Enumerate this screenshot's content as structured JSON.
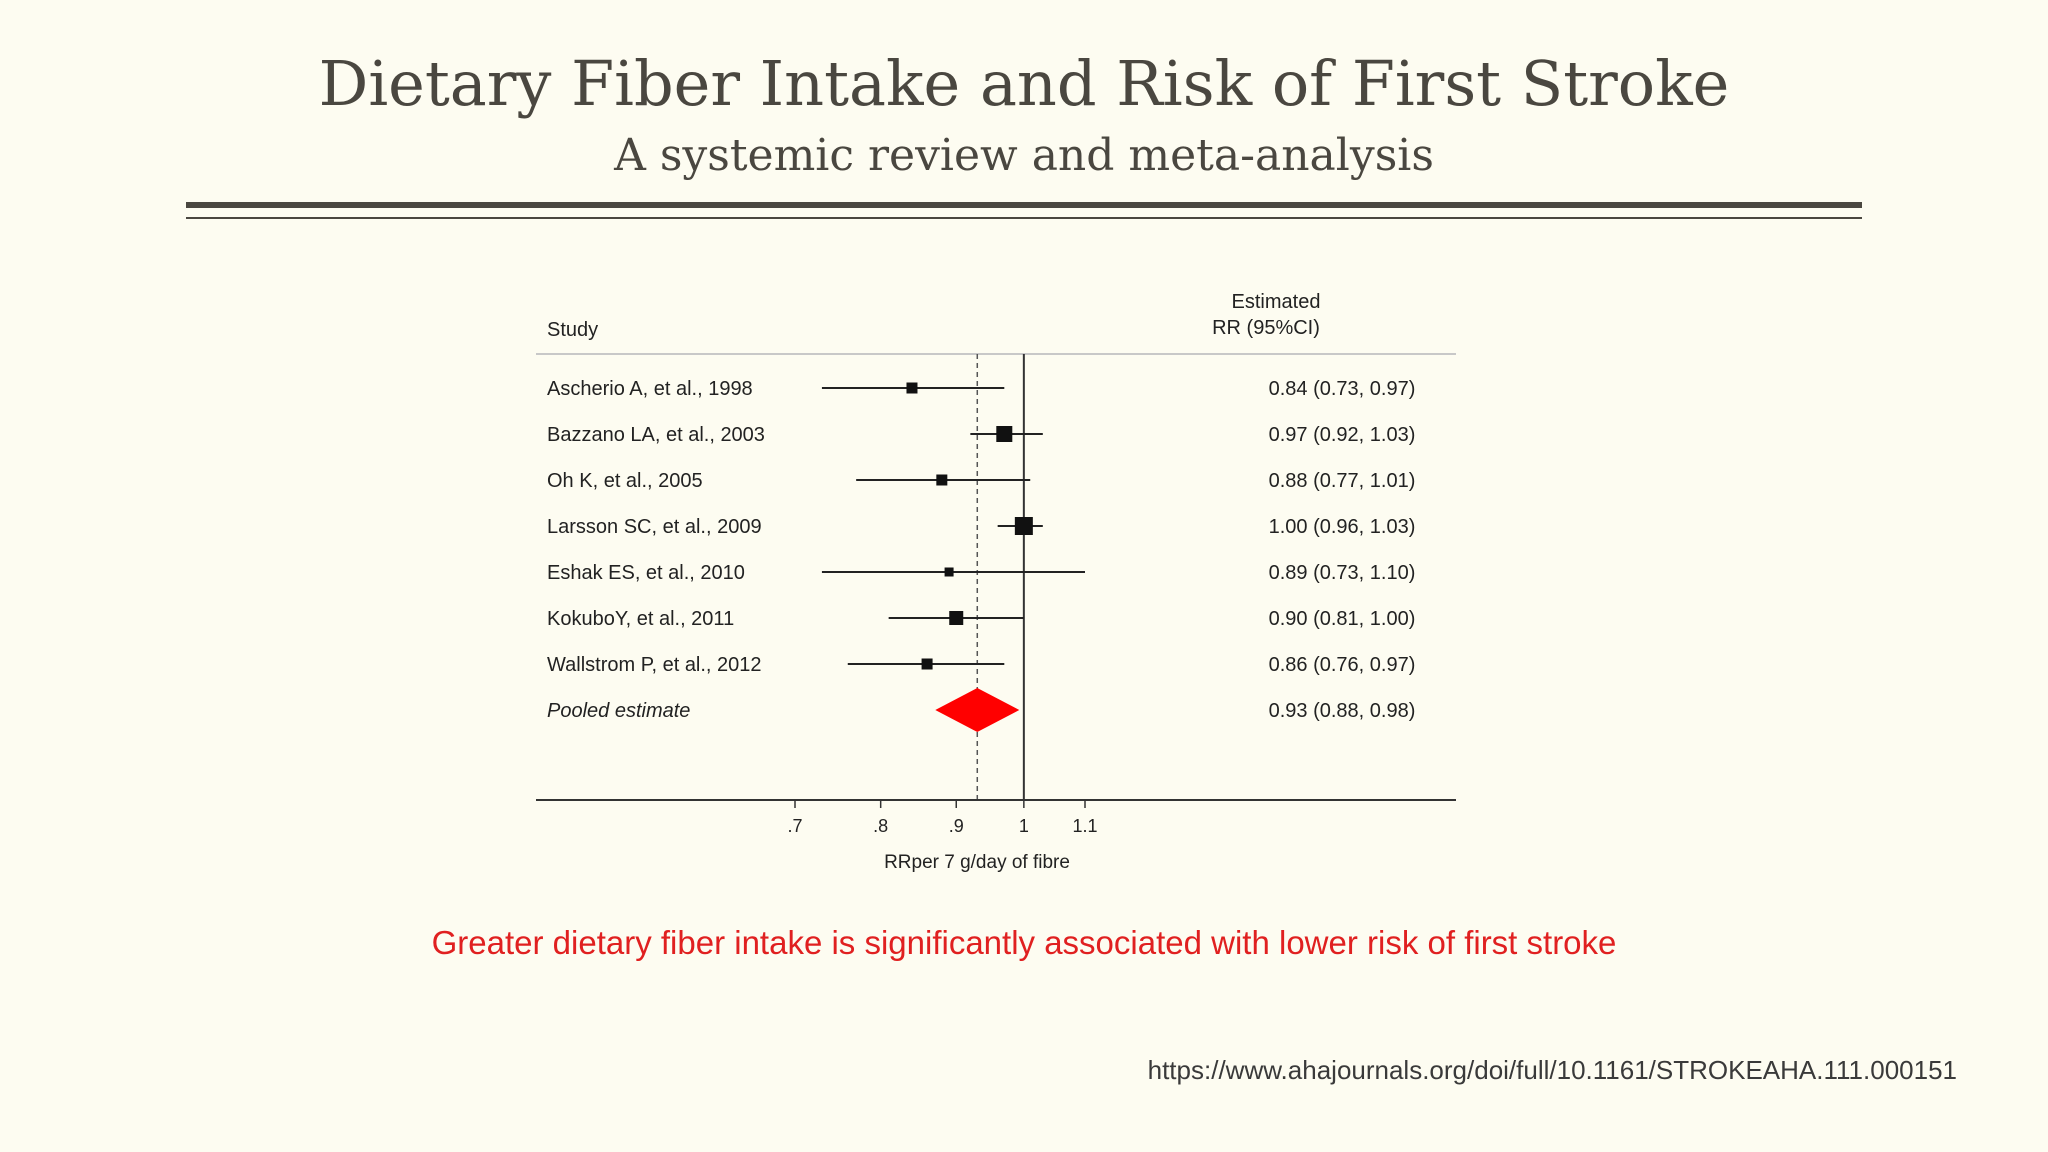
{
  "slide": {
    "title": "Dietary Fiber Intake and Risk of First Stroke",
    "subtitle": "A systemic review and meta-analysis",
    "takeaway": "Greater dietary fiber intake is significantly associated with lower risk of first stroke",
    "source_url": "https://www.ahajournals.org/doi/full/10.1161/STROKEAHA.111.000151",
    "takeaway_color": "#e02020"
  },
  "chart_data": {
    "type": "forest",
    "column_headers": {
      "study": "Study",
      "estimate_line1": "Estimated",
      "estimate_line2": "RR (95%CI)"
    },
    "xlabel": "RRper 7 g/day of fibre",
    "x_ticks": [
      0.7,
      0.8,
      0.9,
      1.0,
      1.1
    ],
    "x_tick_labels": [
      ".7",
      ".8",
      ".9",
      "1",
      "1.1"
    ],
    "xlim": [
      0.7,
      1.1
    ],
    "log_scale": true,
    "null_line": 1.0,
    "pooled_reference_line": 0.93,
    "studies": [
      {
        "label": "Ascherio A, et al., 1998",
        "rr": 0.84,
        "lo": 0.73,
        "hi": 0.97,
        "ci_text": "0.84 (0.73, 0.97)",
        "weight": "small"
      },
      {
        "label": "Bazzano LA, et al., 2003",
        "rr": 0.97,
        "lo": 0.92,
        "hi": 1.03,
        "ci_text": "0.97 (0.92, 1.03)",
        "weight": "large"
      },
      {
        "label": "Oh K, et al., 2005",
        "rr": 0.88,
        "lo": 0.77,
        "hi": 1.01,
        "ci_text": "0.88 (0.77, 1.01)",
        "weight": "small"
      },
      {
        "label": "Larsson SC, et al., 2009",
        "rr": 1.0,
        "lo": 0.96,
        "hi": 1.03,
        "ci_text": "1.00 (0.96, 1.03)",
        "weight": "largest"
      },
      {
        "label": "Eshak ES, et al., 2010",
        "rr": 0.89,
        "lo": 0.73,
        "hi": 1.1,
        "ci_text": "0.89 (0.73, 1.10)",
        "weight": "smallest"
      },
      {
        "label": "KokuboY, et al., 2011",
        "rr": 0.9,
        "lo": 0.81,
        "hi": 1.0,
        "ci_text": "0.90 (0.81, 1.00)",
        "weight": "medium"
      },
      {
        "label": "Wallstrom P, et al., 2012",
        "rr": 0.86,
        "lo": 0.76,
        "hi": 0.97,
        "ci_text": "0.86 (0.76, 0.97)",
        "weight": "small"
      }
    ],
    "pooled": {
      "label": "Pooled estimate",
      "rr": 0.93,
      "lo": 0.88,
      "hi": 0.98,
      "ci_text": "0.93 (0.88, 0.98)",
      "color": "#ff0000"
    }
  }
}
